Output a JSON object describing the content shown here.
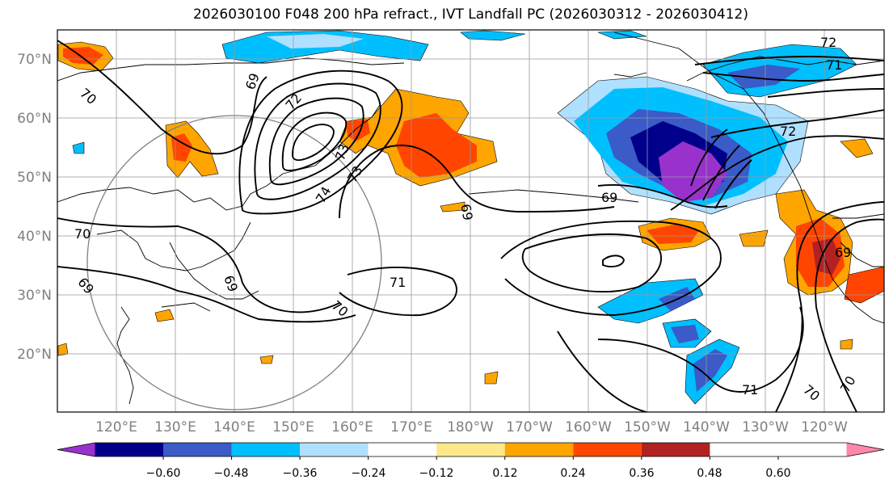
{
  "title": "2026030100 F048 200 hPa refract., IVT Landfall PC (2026030312 - 2026030412)",
  "map": {
    "lat_labels": [
      "70°N",
      "60°N",
      "50°N",
      "40°N",
      "30°N",
      "20°N"
    ],
    "lon_labels": [
      "120°E",
      "130°E",
      "140°E",
      "150°E",
      "160°E",
      "170°E",
      "180°W",
      "170°W",
      "160°W",
      "150°W",
      "140°W",
      "130°W",
      "120°W"
    ],
    "contour_labels": [
      "72",
      "71",
      "72",
      "70",
      "69",
      "69",
      "74",
      "73",
      "73",
      "72",
      "69",
      "69",
      "69",
      "70",
      "71",
      "70",
      "71",
      "70",
      "70",
      "69"
    ]
  },
  "colorbar": {
    "colors": [
      "#9932cc",
      "#00008b",
      "#3a5bc8",
      "#00bfff",
      "#b0e0ff",
      "#ffffff",
      "#ffe88a",
      "#ffa500",
      "#ff4500",
      "#b22222",
      "#ff88aa"
    ],
    "tick_labels": [
      "−0.60",
      "−0.48",
      "−0.36",
      "−0.24",
      "−0.12",
      "0.12",
      "0.24",
      "0.36",
      "0.48",
      "0.60"
    ]
  }
}
